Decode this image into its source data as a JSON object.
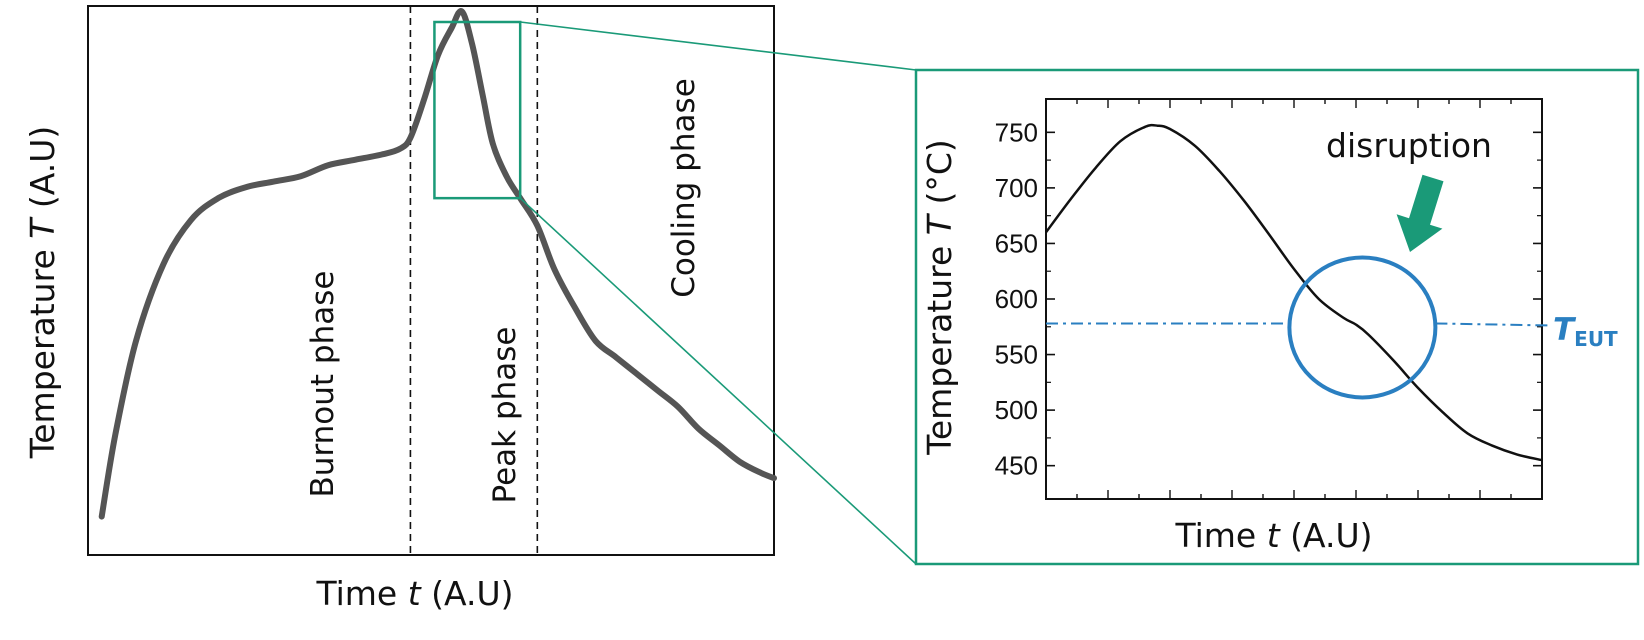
{
  "colors": {
    "curve": "#555555",
    "accent": "#1a9a78",
    "circle": "#2a7fc1",
    "axis": "#111111"
  },
  "chart_data": [
    {
      "type": "line",
      "title": "",
      "xlabel_prefix": "Time ",
      "xlabel_var": "t",
      "xlabel_suffix": " (A.U)",
      "ylabel_prefix": "Temperature ",
      "ylabel_var": "T",
      "ylabel_suffix": " (A.U)",
      "ticks": "none",
      "phases": [
        "Burnout phase",
        "Peak phase",
        "Cooling phase"
      ],
      "phase_boundaries": [
        0.47,
        0.655
      ],
      "series": [
        {
          "x": [
            0.02,
            0.04,
            0.07,
            0.11,
            0.15,
            0.19,
            0.23,
            0.27,
            0.31,
            0.35,
            0.39,
            0.43,
            0.455,
            0.47,
            0.49,
            0.51,
            0.53,
            0.545,
            0.56,
            0.575,
            0.59,
            0.61,
            0.63,
            0.655,
            0.68,
            0.71,
            0.74,
            0.77,
            0.8,
            0.83,
            0.86,
            0.89,
            0.92,
            0.95,
            0.98,
            1.0
          ],
          "y": [
            0.07,
            0.22,
            0.39,
            0.53,
            0.61,
            0.65,
            0.67,
            0.68,
            0.69,
            0.71,
            0.72,
            0.73,
            0.74,
            0.76,
            0.83,
            0.91,
            0.96,
            0.99,
            0.93,
            0.84,
            0.75,
            0.69,
            0.65,
            0.6,
            0.52,
            0.45,
            0.39,
            0.36,
            0.33,
            0.3,
            0.27,
            0.23,
            0.2,
            0.17,
            0.15,
            0.14
          ]
        }
      ],
      "zoom_region": {
        "x": [
          0.505,
          0.63
        ],
        "y": [
          0.65,
          1.0
        ]
      }
    },
    {
      "type": "line",
      "title": "",
      "xlabel_prefix": "Time ",
      "xlabel_var": "t",
      "xlabel_suffix": " (A.U)",
      "ylabel_prefix": "Temperature ",
      "ylabel_var": "T",
      "ylabel_suffix": " (°C)",
      "xlim": [
        0,
        8
      ],
      "ylim": [
        420,
        780
      ],
      "yticks": [
        450,
        500,
        550,
        600,
        650,
        700,
        750
      ],
      "xminorticks": 16,
      "series": [
        {
          "x": [
            0,
            0.4,
            0.8,
            1.2,
            1.6,
            1.8,
            2.0,
            2.4,
            2.8,
            3.2,
            3.6,
            4.0,
            4.4,
            4.8,
            5.0,
            5.2,
            5.6,
            6.0,
            6.4,
            6.8,
            7.2,
            7.6,
            8.0
          ],
          "y": [
            660,
            690,
            718,
            742,
            755,
            756,
            753,
            738,
            715,
            688,
            658,
            627,
            600,
            583,
            577,
            568,
            545,
            520,
            498,
            479,
            468,
            460,
            455
          ]
        }
      ],
      "reference_line": {
        "label_var": "T",
        "label_sub": "EUT",
        "y": 578
      },
      "annotation": {
        "text": "disruption",
        "x": 5.2,
        "y": 578
      }
    }
  ]
}
